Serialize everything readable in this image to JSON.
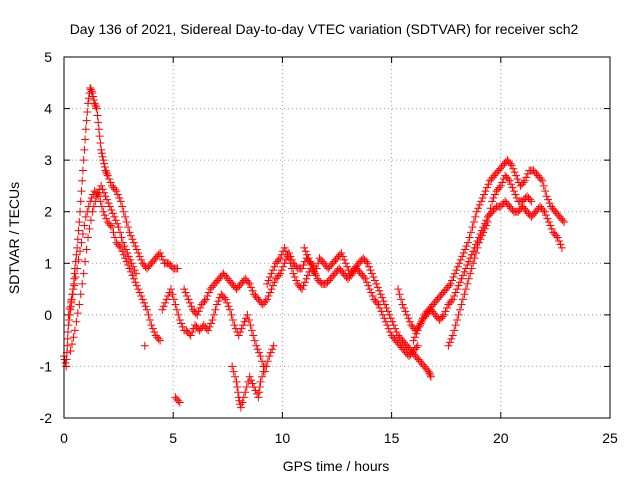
{
  "chart_data": {
    "type": "scatter",
    "title": "Day 136 of 2021, Sidereal Day-to-day VTEC variation (SDTVAR) for receiver sch2",
    "xlabel": "GPS time / hours",
    "ylabel": "SDTVAR / TECUs",
    "xlim": [
      0,
      25
    ],
    "ylim": [
      -2,
      5
    ],
    "xticks": [
      0,
      5,
      10,
      15,
      20,
      25
    ],
    "yticks": [
      -2,
      -1,
      0,
      1,
      2,
      3,
      4,
      5
    ],
    "grid": true,
    "marker": "+",
    "series_color": "#ff0000",
    "series": [
      {
        "name": "SDTVAR",
        "points": [
          [
            0.0,
            -0.8
          ],
          [
            0.1,
            -1.0
          ],
          [
            0.15,
            -0.6
          ],
          [
            0.2,
            -0.2
          ],
          [
            0.3,
            0.1
          ],
          [
            0.35,
            0.3
          ],
          [
            0.45,
            0.6
          ],
          [
            0.5,
            0.9
          ],
          [
            0.6,
            1.3
          ],
          [
            0.7,
            1.8
          ],
          [
            0.8,
            2.4
          ],
          [
            0.9,
            3.0
          ],
          [
            1.0,
            3.6
          ],
          [
            1.1,
            4.1
          ],
          [
            1.2,
            4.4
          ],
          [
            1.3,
            4.3
          ],
          [
            1.4,
            4.1
          ],
          [
            1.5,
            4.0
          ],
          [
            1.6,
            3.6
          ],
          [
            1.7,
            3.2
          ],
          [
            1.8,
            3.0
          ],
          [
            1.9,
            2.8
          ],
          [
            2.0,
            2.7
          ],
          [
            2.2,
            2.5
          ],
          [
            2.4,
            2.4
          ],
          [
            2.6,
            2.2
          ],
          [
            2.8,
            1.9
          ],
          [
            3.0,
            1.6
          ],
          [
            3.2,
            1.4
          ],
          [
            3.4,
            1.2
          ],
          [
            3.6,
            1.0
          ],
          [
            3.8,
            0.9
          ],
          [
            4.0,
            1.0
          ],
          [
            4.2,
            1.1
          ],
          [
            4.4,
            1.2
          ],
          [
            4.6,
            1.0
          ],
          [
            4.8,
            1.0
          ],
          [
            5.0,
            0.9
          ],
          [
            5.2,
            0.9
          ],
          [
            0.2,
            0.0
          ],
          [
            0.4,
            0.4
          ],
          [
            0.6,
            0.9
          ],
          [
            0.8,
            1.4
          ],
          [
            1.0,
            1.9
          ],
          [
            1.2,
            2.2
          ],
          [
            1.4,
            2.4
          ],
          [
            1.6,
            2.3
          ],
          [
            1.8,
            2.0
          ],
          [
            2.0,
            1.8
          ],
          [
            2.2,
            1.7
          ],
          [
            2.4,
            1.4
          ],
          [
            2.6,
            1.3
          ],
          [
            2.8,
            1.1
          ],
          [
            3.0,
            0.9
          ],
          [
            3.2,
            0.7
          ],
          [
            3.4,
            0.5
          ],
          [
            3.6,
            0.3
          ],
          [
            3.8,
            0.1
          ],
          [
            4.0,
            -0.2
          ],
          [
            4.2,
            -0.4
          ],
          [
            4.4,
            -0.5
          ],
          [
            3.7,
            -0.6
          ],
          [
            0.3,
            -0.7
          ],
          [
            0.5,
            -0.3
          ],
          [
            0.7,
            0.2
          ],
          [
            0.9,
            0.8
          ],
          [
            1.1,
            1.5
          ],
          [
            1.3,
            2.0
          ],
          [
            1.5,
            2.3
          ],
          [
            1.7,
            2.5
          ],
          [
            1.9,
            2.3
          ],
          [
            2.1,
            2.1
          ],
          [
            2.3,
            1.9
          ],
          [
            2.5,
            1.7
          ],
          [
            2.7,
            1.4
          ],
          [
            2.9,
            1.2
          ],
          [
            3.1,
            1.0
          ],
          [
            3.3,
            0.8
          ],
          [
            4.5,
            0.1
          ],
          [
            4.7,
            0.3
          ],
          [
            4.9,
            0.5
          ],
          [
            5.1,
            0.2
          ],
          [
            5.3,
            -0.1
          ],
          [
            5.5,
            -0.3
          ],
          [
            5.5,
            0.5
          ],
          [
            5.7,
            0.3
          ],
          [
            5.9,
            0.1
          ],
          [
            6.1,
            0.0
          ],
          [
            6.3,
            0.2
          ],
          [
            6.5,
            0.3
          ],
          [
            6.7,
            0.5
          ],
          [
            6.9,
            0.6
          ],
          [
            7.1,
            0.7
          ],
          [
            7.3,
            0.8
          ],
          [
            7.5,
            0.7
          ],
          [
            7.7,
            0.6
          ],
          [
            7.9,
            0.5
          ],
          [
            8.1,
            0.6
          ],
          [
            8.3,
            0.7
          ],
          [
            8.5,
            0.6
          ],
          [
            8.7,
            0.4
          ],
          [
            8.9,
            0.3
          ],
          [
            9.1,
            0.2
          ],
          [
            9.3,
            0.3
          ],
          [
            9.5,
            0.5
          ],
          [
            9.7,
            0.7
          ],
          [
            9.9,
            0.8
          ],
          [
            10.1,
            1.0
          ],
          [
            10.3,
            1.2
          ],
          [
            10.5,
            1.0
          ],
          [
            10.7,
            0.9
          ],
          [
            10.9,
            0.9
          ],
          [
            11.1,
            1.1
          ],
          [
            11.3,
            1.0
          ],
          [
            11.5,
            0.9
          ],
          [
            5.6,
            -0.3
          ],
          [
            5.8,
            -0.4
          ],
          [
            6.0,
            -0.2
          ],
          [
            6.2,
            -0.3
          ],
          [
            6.4,
            -0.2
          ],
          [
            6.6,
            -0.3
          ],
          [
            6.8,
            -0.1
          ],
          [
            7.0,
            0.2
          ],
          [
            7.2,
            0.4
          ],
          [
            7.4,
            0.3
          ],
          [
            7.6,
            0.1
          ],
          [
            7.8,
            -0.2
          ],
          [
            8.0,
            -0.4
          ],
          [
            8.2,
            -0.2
          ],
          [
            8.4,
            0.0
          ],
          [
            8.6,
            -0.3
          ],
          [
            8.8,
            -0.6
          ],
          [
            9.0,
            -0.8
          ],
          [
            9.2,
            -1.1
          ],
          [
            9.4,
            -0.8
          ],
          [
            9.6,
            -0.6
          ],
          [
            7.7,
            -1.0
          ],
          [
            7.9,
            -1.3
          ],
          [
            8.0,
            -1.6
          ],
          [
            8.1,
            -1.8
          ],
          [
            8.3,
            -1.5
          ],
          [
            8.5,
            -1.2
          ],
          [
            8.7,
            -1.4
          ],
          [
            8.9,
            -1.6
          ],
          [
            9.0,
            -1.3
          ],
          [
            9.2,
            -1.0
          ],
          [
            5.1,
            -1.6
          ],
          [
            5.3,
            -1.7
          ],
          [
            9.3,
            0.6
          ],
          [
            9.5,
            0.8
          ],
          [
            9.7,
            1.0
          ],
          [
            9.9,
            1.1
          ],
          [
            10.1,
            1.3
          ],
          [
            10.3,
            1.1
          ],
          [
            10.5,
            0.8
          ],
          [
            10.7,
            0.6
          ],
          [
            10.9,
            0.5
          ],
          [
            11.1,
            0.7
          ],
          [
            11.3,
            0.9
          ],
          [
            11.5,
            0.8
          ],
          [
            11.7,
            1.1
          ],
          [
            11.9,
            1.0
          ],
          [
            12.1,
            0.9
          ],
          [
            12.3,
            1.0
          ],
          [
            12.5,
            1.1
          ],
          [
            12.7,
            1.2
          ],
          [
            12.9,
            1.0
          ],
          [
            13.1,
            0.8
          ],
          [
            13.3,
            0.9
          ],
          [
            13.5,
            1.0
          ],
          [
            13.7,
            1.1
          ],
          [
            13.9,
            1.0
          ],
          [
            14.1,
            0.8
          ],
          [
            14.3,
            0.6
          ],
          [
            14.5,
            0.4
          ],
          [
            14.7,
            0.2
          ],
          [
            14.9,
            0.0
          ],
          [
            15.1,
            -0.2
          ],
          [
            15.3,
            -0.4
          ],
          [
            15.5,
            -0.5
          ],
          [
            15.7,
            -0.6
          ],
          [
            15.9,
            -0.7
          ],
          [
            16.1,
            -0.8
          ],
          [
            16.3,
            -0.9
          ],
          [
            16.5,
            -1.0
          ],
          [
            16.7,
            -1.1
          ],
          [
            16.8,
            -1.2
          ],
          [
            11.0,
            1.3
          ],
          [
            11.2,
            1.1
          ],
          [
            11.4,
            0.9
          ],
          [
            11.6,
            0.7
          ],
          [
            11.8,
            0.6
          ],
          [
            12.0,
            0.6
          ],
          [
            12.2,
            0.7
          ],
          [
            12.4,
            0.8
          ],
          [
            12.6,
            0.9
          ],
          [
            12.8,
            0.8
          ],
          [
            13.0,
            0.7
          ],
          [
            13.2,
            0.8
          ],
          [
            13.4,
            0.9
          ],
          [
            13.6,
            0.8
          ],
          [
            13.8,
            0.7
          ],
          [
            14.0,
            0.5
          ],
          [
            14.2,
            0.3
          ],
          [
            14.4,
            0.2
          ],
          [
            14.6,
            0.0
          ],
          [
            14.8,
            -0.2
          ],
          [
            15.0,
            -0.4
          ],
          [
            15.2,
            -0.5
          ],
          [
            15.4,
            -0.6
          ],
          [
            15.6,
            -0.7
          ],
          [
            15.8,
            -0.8
          ],
          [
            16.0,
            -0.7
          ],
          [
            16.2,
            -0.6
          ],
          [
            15.3,
            0.5
          ],
          [
            15.5,
            0.2
          ],
          [
            15.7,
            0.0
          ],
          [
            15.9,
            -0.2
          ],
          [
            16.1,
            -0.3
          ],
          [
            16.3,
            -0.2
          ],
          [
            16.5,
            0.0
          ],
          [
            16.7,
            0.1
          ],
          [
            16.9,
            0.2
          ],
          [
            17.1,
            0.3
          ],
          [
            17.3,
            0.4
          ],
          [
            17.5,
            0.5
          ],
          [
            17.7,
            0.6
          ],
          [
            17.9,
            0.8
          ],
          [
            18.1,
            1.0
          ],
          [
            18.3,
            1.2
          ],
          [
            18.5,
            1.4
          ],
          [
            18.7,
            1.7
          ],
          [
            18.9,
            2.0
          ],
          [
            19.1,
            2.2
          ],
          [
            19.3,
            2.4
          ],
          [
            19.5,
            2.6
          ],
          [
            19.7,
            2.7
          ],
          [
            19.9,
            2.8
          ],
          [
            20.1,
            2.9
          ],
          [
            20.3,
            3.0
          ],
          [
            20.5,
            2.9
          ],
          [
            20.7,
            2.7
          ],
          [
            20.9,
            2.5
          ],
          [
            21.1,
            2.6
          ],
          [
            21.3,
            2.8
          ],
          [
            21.5,
            2.8
          ],
          [
            21.7,
            2.7
          ],
          [
            21.9,
            2.6
          ],
          [
            22.1,
            2.3
          ],
          [
            22.3,
            2.1
          ],
          [
            22.5,
            2.0
          ],
          [
            22.7,
            1.9
          ],
          [
            22.9,
            1.8
          ],
          [
            16.0,
            -0.5
          ],
          [
            16.2,
            -0.3
          ],
          [
            16.4,
            -0.1
          ],
          [
            16.6,
            0.0
          ],
          [
            16.8,
            0.1
          ],
          [
            17.0,
            0.0
          ],
          [
            17.2,
            -0.1
          ],
          [
            17.4,
            0.0
          ],
          [
            17.6,
            0.2
          ],
          [
            17.8,
            0.3
          ],
          [
            18.0,
            0.5
          ],
          [
            18.2,
            0.7
          ],
          [
            18.4,
            0.9
          ],
          [
            18.6,
            1.1
          ],
          [
            18.8,
            1.3
          ],
          [
            19.0,
            1.5
          ],
          [
            19.2,
            1.7
          ],
          [
            19.4,
            1.9
          ],
          [
            19.6,
            2.0
          ],
          [
            19.8,
            2.1
          ],
          [
            20.0,
            2.1
          ],
          [
            20.2,
            2.2
          ],
          [
            20.4,
            2.1
          ],
          [
            20.6,
            2.0
          ],
          [
            20.8,
            2.0
          ],
          [
            21.0,
            2.1
          ],
          [
            21.2,
            2.0
          ],
          [
            21.4,
            1.9
          ],
          [
            21.6,
            2.0
          ],
          [
            21.8,
            2.1
          ],
          [
            22.0,
            2.0
          ],
          [
            22.2,
            1.8
          ],
          [
            22.4,
            1.6
          ],
          [
            22.6,
            1.5
          ],
          [
            22.8,
            1.3
          ],
          [
            17.6,
            -0.6
          ],
          [
            17.8,
            -0.4
          ],
          [
            18.0,
            -0.1
          ],
          [
            18.2,
            0.2
          ],
          [
            18.4,
            0.5
          ],
          [
            18.6,
            0.8
          ],
          [
            18.8,
            1.1
          ],
          [
            19.0,
            1.4
          ],
          [
            19.2,
            1.6
          ],
          [
            19.4,
            1.8
          ],
          [
            19.6,
            2.2
          ],
          [
            19.8,
            2.4
          ],
          [
            20.0,
            2.5
          ],
          [
            20.2,
            2.7
          ],
          [
            20.4,
            2.6
          ],
          [
            20.6,
            2.4
          ],
          [
            20.8,
            2.2
          ],
          [
            21.0,
            2.2
          ],
          [
            21.2,
            2.3
          ],
          [
            21.4,
            2.2
          ]
        ]
      }
    ]
  }
}
